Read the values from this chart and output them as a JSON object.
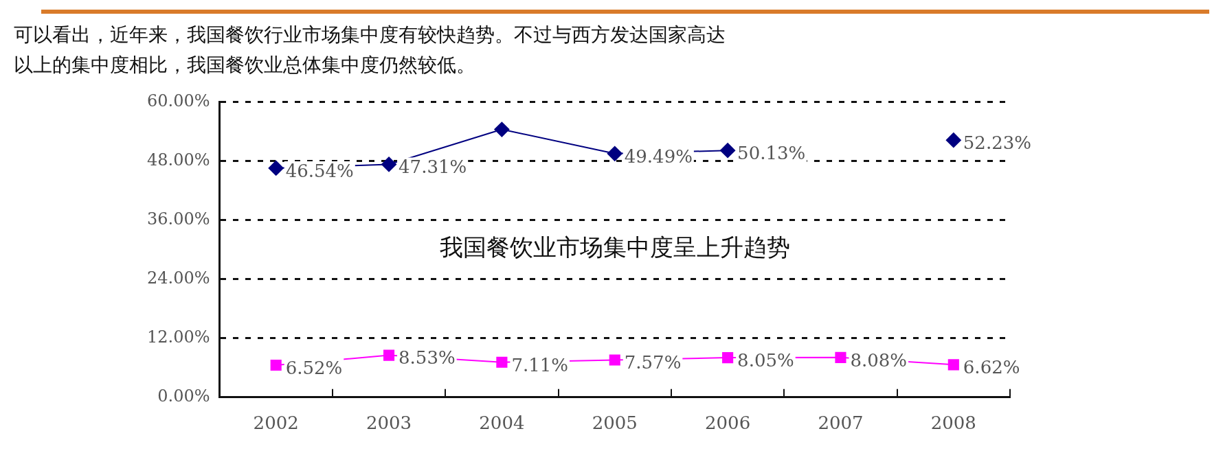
{
  "chart_data": {
    "type": "line",
    "title": "可以看出，近年来，我国餐饮行业市场集中度有较快趋势。不过与西方发达国家高达",
    "subtitle": "以上的集中度相比，我国餐饮业总体集中度仍然较低。",
    "categories": [
      "2002",
      "2003",
      "2004",
      "2005",
      "2006",
      "2007",
      "2008"
    ],
    "series": [
      {
        "color": "#000080",
        "marker": "diamond",
        "values": [
          46.54,
          47.31,
          54.4,
          49.49,
          50.13,
          null,
          52.23
        ],
        "value_labels": [
          "46.54%",
          "47.31%",
          null,
          "49.49%",
          "50.13%",
          null,
          "52.23%"
        ]
      },
      {
        "color": "#ff00ff",
        "marker": "square",
        "values": [
          6.52,
          8.53,
          7.11,
          7.57,
          8.05,
          8.08,
          6.62
        ],
        "value_labels": [
          "6.52%",
          "8.53%",
          "7.11%",
          "7.57%",
          "8.05%",
          "8.08%",
          "6.62%"
        ]
      }
    ],
    "ylim": [
      0,
      60
    ],
    "yticks": [
      {
        "value": 0,
        "label": "0.00%"
      },
      {
        "value": 12,
        "label": "12.00%"
      },
      {
        "value": 24,
        "label": "24.00%"
      },
      {
        "value": 36,
        "label": "36.00%"
      },
      {
        "value": 48,
        "label": "48.00%"
      },
      {
        "value": 60,
        "label": "60.00%"
      }
    ],
    "grid": "y",
    "line_style": "solid",
    "legend": false,
    "annotations": [
      "我国餐饮业市场集中度呈上升趋势"
    ]
  }
}
